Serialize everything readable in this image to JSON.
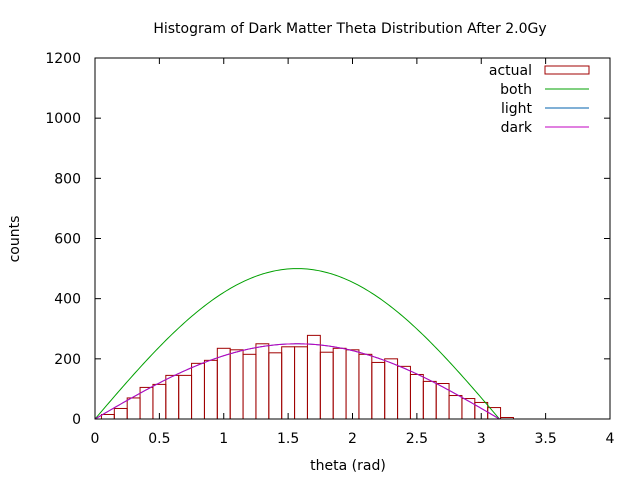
{
  "chart_data": {
    "type": "bar",
    "title": "Histogram of Dark Matter Theta Distribution After 2.0Gy",
    "xlabel": "theta (rad)",
    "ylabel": "counts",
    "xlim": [
      0,
      4
    ],
    "ylim": [
      0,
      1200
    ],
    "x_ticks": [
      "0",
      "0.5",
      "1",
      "1.5",
      "2",
      "2.5",
      "3",
      "3.5",
      "4"
    ],
    "y_ticks": [
      "0",
      "200",
      "400",
      "600",
      "800",
      "1000",
      "1200"
    ],
    "grid": false,
    "legend_position": "top-right",
    "histogram": {
      "name": "actual",
      "color": "#a00000",
      "bin_width": 0.1,
      "bin_start": 0.05,
      "counts": [
        15,
        35,
        70,
        105,
        115,
        145,
        145,
        185,
        195,
        235,
        230,
        215,
        250,
        220,
        240,
        240,
        278,
        222,
        235,
        230,
        215,
        188,
        200,
        175,
        148,
        125,
        118,
        78,
        68,
        55,
        38,
        5
      ]
    },
    "series": [
      {
        "name": "both",
        "color": "#00a000",
        "function": "500*sin(theta)",
        "x_range": [
          0,
          3.1416
        ]
      },
      {
        "name": "light",
        "color": "#0060ad",
        "function": "250*sin(theta)",
        "x_range": [
          0,
          3.1416
        ]
      },
      {
        "name": "dark",
        "color": "#c000c0",
        "function": "250*sin(theta)",
        "x_range": [
          0,
          3.1416
        ]
      }
    ]
  }
}
